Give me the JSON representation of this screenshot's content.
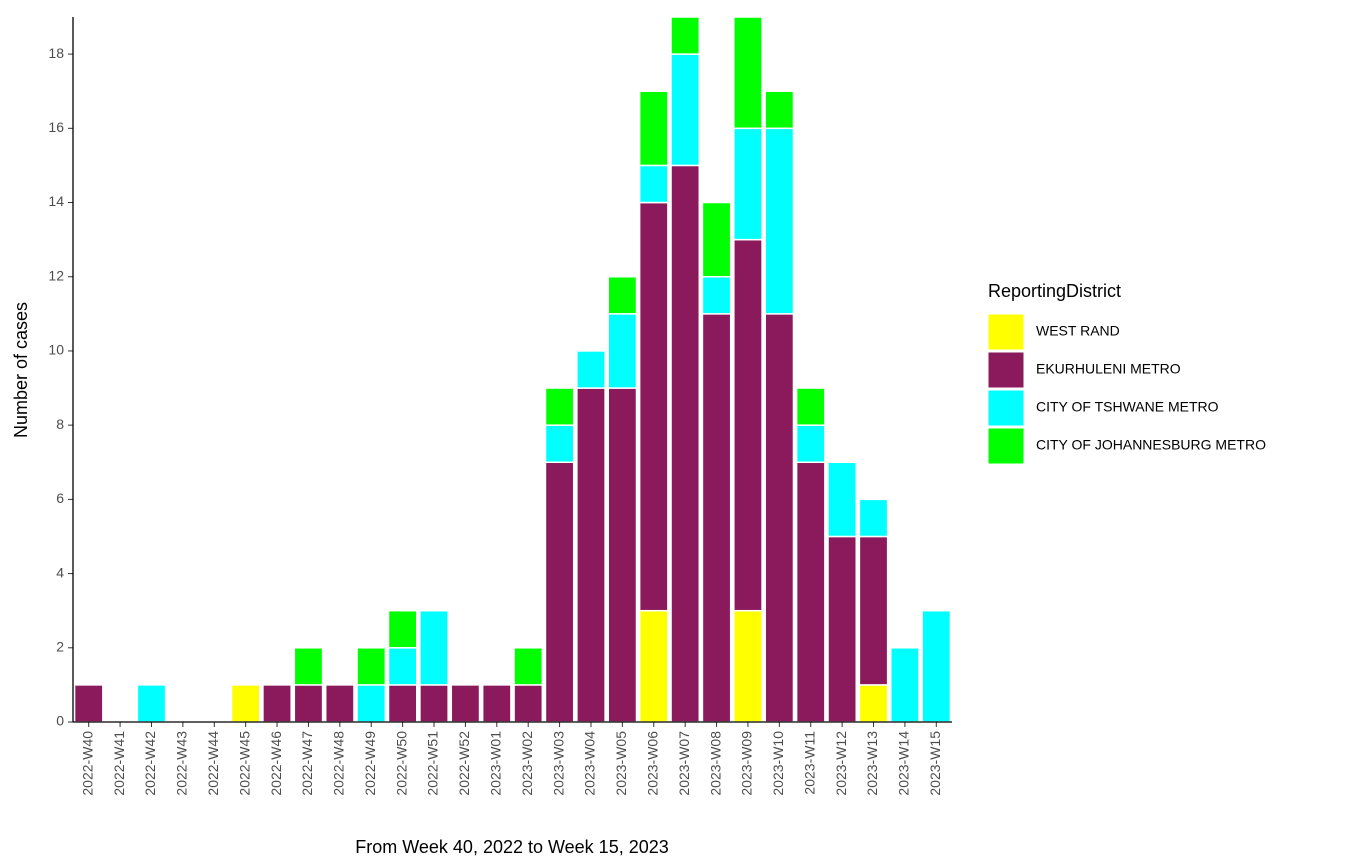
{
  "chart_data": {
    "type": "stacked_bar",
    "x_label": "From Week 40, 2022 to Week 15, 2023",
    "y_label": "Number of cases",
    "legend_title": "ReportingDistrict",
    "legend_position": "right",
    "grid": false,
    "categories": [
      "2022-W40",
      "2022-W41",
      "2022-W42",
      "2022-W43",
      "2022-W44",
      "2022-W45",
      "2022-W46",
      "2022-W47",
      "2022-W48",
      "2022-W49",
      "2022-W50",
      "2022-W51",
      "2022-W52",
      "2023-W01",
      "2023-W02",
      "2023-W03",
      "2023-W04",
      "2023-W05",
      "2023-W06",
      "2023-W07",
      "2023-W08",
      "2023-W09",
      "2023-W10",
      "2023-W11",
      "2023-W12",
      "2023-W13",
      "2023-W14",
      "2023-W15"
    ],
    "series": [
      {
        "name": "WEST RAND",
        "color": "#ffff00",
        "values": [
          0,
          0,
          0,
          0,
          0,
          1,
          0,
          0,
          0,
          0,
          0,
          0,
          0,
          0,
          0,
          0,
          0,
          0,
          3,
          0,
          0,
          3,
          0,
          0,
          0,
          1,
          0,
          0
        ]
      },
      {
        "name": "EKURHULENI METRO",
        "color": "#8b1a5c",
        "values": [
          1,
          0,
          0,
          0,
          0,
          0,
          1,
          1,
          1,
          0,
          1,
          1,
          1,
          1,
          1,
          7,
          9,
          9,
          11,
          15,
          11,
          10,
          11,
          7,
          5,
          4,
          0,
          0
        ]
      },
      {
        "name": "CITY OF TSHWANE METRO",
        "color": "#00ffff",
        "values": [
          0,
          0,
          1,
          0,
          0,
          0,
          0,
          0,
          0,
          1,
          1,
          2,
          0,
          0,
          0,
          1,
          1,
          2,
          1,
          3,
          1,
          3,
          5,
          1,
          2,
          1,
          2,
          3
        ]
      },
      {
        "name": "CITY OF JOHANNESBURG METRO",
        "color": "#00ff00",
        "values": [
          0,
          0,
          0,
          0,
          0,
          0,
          0,
          1,
          0,
          1,
          1,
          0,
          0,
          0,
          1,
          1,
          0,
          1,
          2,
          1,
          2,
          3,
          1,
          1,
          0,
          0,
          0,
          0
        ]
      }
    ],
    "ylim": [
      0,
      19
    ],
    "yticks": [
      0,
      2,
      4,
      6,
      8,
      10,
      12,
      14,
      16,
      18
    ]
  }
}
